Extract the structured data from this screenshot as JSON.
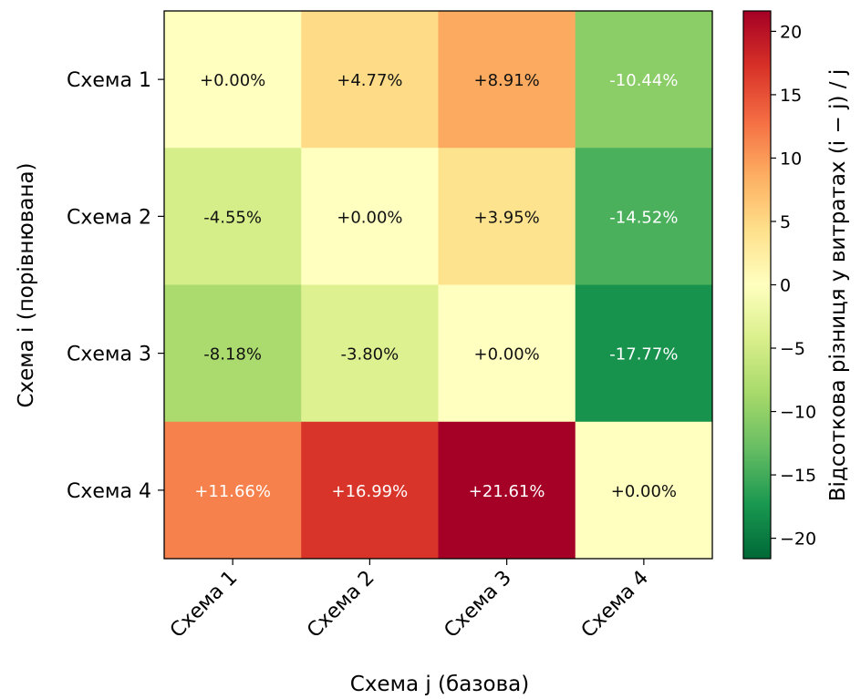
{
  "chart_data": {
    "type": "heatmap",
    "title": "",
    "xlabel": "Схема j (базова)",
    "ylabel": "Схема i (порівнювана)",
    "x_categories": [
      "Схема 1",
      "Схема 2",
      "Схема 3",
      "Схема 4"
    ],
    "y_categories": [
      "Схема 1",
      "Схема 2",
      "Схема 3",
      "Схема 4"
    ],
    "values": [
      [
        0.0,
        4.77,
        8.91,
        -10.44
      ],
      [
        -4.55,
        0.0,
        3.95,
        -14.52
      ],
      [
        -8.18,
        -3.8,
        0.0,
        -17.77
      ],
      [
        11.66,
        16.99,
        21.61,
        0.0
      ]
    ],
    "cell_labels": [
      [
        "+0.00%",
        "+4.77%",
        "+8.91%",
        "-10.44%"
      ],
      [
        "-4.55%",
        "+0.00%",
        "+3.95%",
        "-14.52%"
      ],
      [
        "-8.18%",
        "-3.80%",
        "+0.00%",
        "-17.77%"
      ],
      [
        "+11.66%",
        "+16.99%",
        "+21.61%",
        "+0.00%"
      ]
    ],
    "colormap": "RdYlGn_r",
    "vlim": [
      -21.61,
      21.61
    ],
    "colorbar": {
      "label": "Відсоткова різниця у витратах (i − j) / j",
      "ticks": [
        20,
        15,
        10,
        5,
        0,
        -5,
        -10,
        -15,
        -20
      ],
      "tick_labels": [
        "20",
        "15",
        "10",
        "5",
        "0",
        "−5",
        "−10",
        "−15",
        "−20"
      ]
    },
    "grid": false,
    "legend": "none"
  }
}
